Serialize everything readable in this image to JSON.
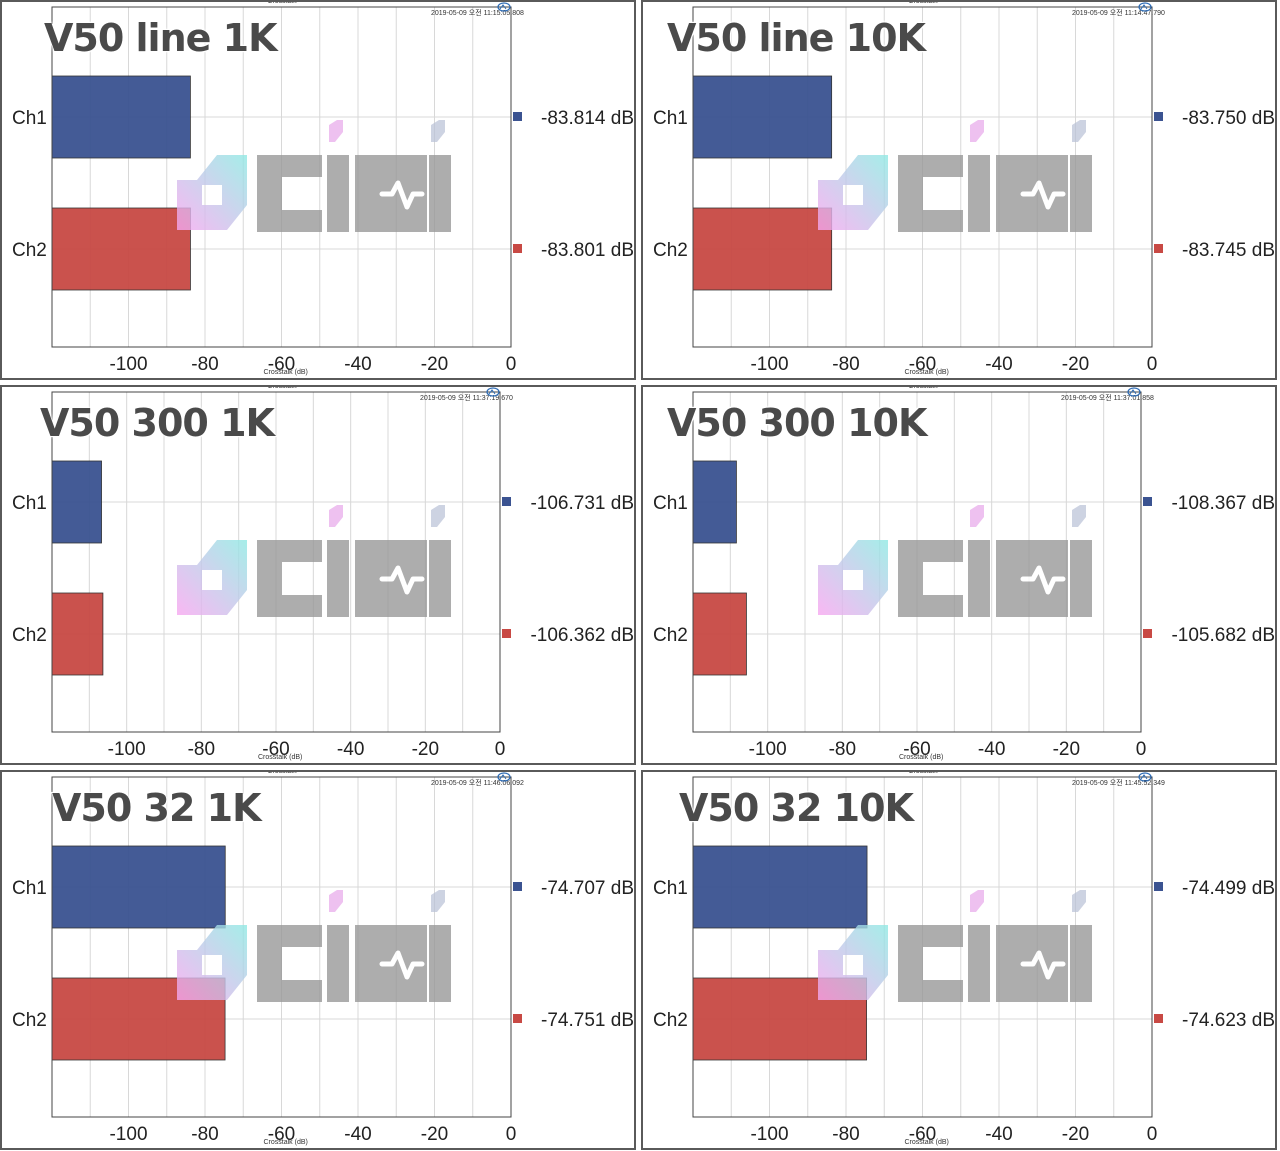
{
  "header": "Crosstalk",
  "xlabel": "Crosstalk (dB)",
  "xlim": [
    -120,
    0
  ],
  "ticks": [
    "-100",
    "-80",
    "-60",
    "-40",
    "-20",
    "0"
  ],
  "tick_values": [
    -100,
    -80,
    -60,
    -40,
    -20,
    0
  ],
  "categories": [
    "Ch1",
    "Ch2"
  ],
  "colors": {
    "ch1": "#3b5391",
    "ch2": "#c84944",
    "grid": "#d8d8d8",
    "plot_border": "#444444"
  },
  "watermark": "ocini",
  "chart_data": [
    {
      "type": "bar",
      "title": "V50 line 1K",
      "timestamp": "2019-05-09 오전 11:15:05.808",
      "categories": [
        "Ch1",
        "Ch2"
      ],
      "values": [
        -83.814,
        -83.801
      ],
      "labels": [
        "-83.814 dB",
        "-83.801 dB"
      ],
      "xlabel": "Crosstalk (dB)",
      "xlim": [
        -120,
        0
      ]
    },
    {
      "type": "bar",
      "title": "V50 line 10K",
      "timestamp": "2019-05-09 오전 11:14:47.790",
      "categories": [
        "Ch1",
        "Ch2"
      ],
      "values": [
        -83.75,
        -83.745
      ],
      "labels": [
        "-83.750 dB",
        "-83.745 dB"
      ],
      "xlabel": "Crosstalk (dB)",
      "xlim": [
        -120,
        0
      ]
    },
    {
      "type": "bar",
      "title": "V50 300 1K",
      "timestamp": "2019-05-09 오전 11:37:19.670",
      "categories": [
        "Ch1",
        "Ch2"
      ],
      "values": [
        -106.731,
        -106.362
      ],
      "labels": [
        "-106.731 dB",
        "-106.362 dB"
      ],
      "xlabel": "Crosstalk (dB)",
      "xlim": [
        -120,
        0
      ]
    },
    {
      "type": "bar",
      "title": "V50 300 10K",
      "timestamp": "2019-05-09 오전 11:37:01.858",
      "categories": [
        "Ch1",
        "Ch2"
      ],
      "values": [
        -108.367,
        -105.682
      ],
      "labels": [
        "-108.367 dB",
        "-105.682 dB"
      ],
      "xlabel": "Crosstalk (dB)",
      "xlim": [
        -120,
        0
      ]
    },
    {
      "type": "bar",
      "title": "V50 32 1K",
      "timestamp": "2019-05-09 오전 11:46:06.092",
      "categories": [
        "Ch1",
        "Ch2"
      ],
      "values": [
        -74.707,
        -74.751
      ],
      "labels": [
        "-74.707 dB",
        "-74.751 dB"
      ],
      "xlabel": "Crosstalk (dB)",
      "xlim": [
        -120,
        0
      ]
    },
    {
      "type": "bar",
      "title": "V50 32 10K",
      "timestamp": "2019-05-09 오전 11:45:52.349",
      "categories": [
        "Ch1",
        "Ch2"
      ],
      "values": [
        -74.499,
        -74.623
      ],
      "labels": [
        "-74.499 dB",
        "-74.623 dB"
      ],
      "xlabel": "Crosstalk (dB)",
      "xlim": [
        -120,
        0
      ]
    }
  ]
}
